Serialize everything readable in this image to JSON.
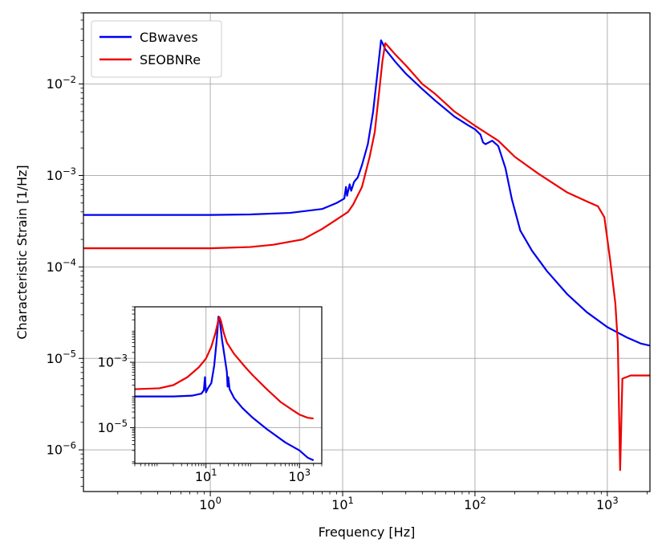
{
  "chart_data": [
    {
      "type": "line",
      "title": "",
      "xlabel": "Frequency [Hz]",
      "ylabel": "Characteristic Strain [1/Hz]",
      "xscale": "log",
      "yscale": "log",
      "xlim": [
        0.11,
        2100
      ],
      "ylim": [
        3.5e-07,
        0.06
      ],
      "grid": true,
      "legend": "top-left",
      "x_ticks": [
        {
          "value": 1,
          "base": "10",
          "exp": "0"
        },
        {
          "value": 10,
          "base": "10",
          "exp": "1"
        },
        {
          "value": 100,
          "base": "10",
          "exp": "2"
        },
        {
          "value": 1000,
          "base": "10",
          "exp": "3"
        }
      ],
      "y_ticks": [
        {
          "value": 1e-06,
          "base": "10",
          "exp": "−6"
        },
        {
          "value": 1e-05,
          "base": "10",
          "exp": "−5"
        },
        {
          "value": 0.0001,
          "base": "10",
          "exp": "−4"
        },
        {
          "value": 0.001,
          "base": "10",
          "exp": "−3"
        },
        {
          "value": 0.01,
          "base": "10",
          "exp": "−2"
        }
      ],
      "series": [
        {
          "name": "CBwaves",
          "color": "#0000ee",
          "points": [
            [
              0.11,
              0.00037
            ],
            [
              0.5,
              0.00037
            ],
            [
              1,
              0.00037
            ],
            [
              2,
              0.000375
            ],
            [
              4,
              0.00039
            ],
            [
              7,
              0.00043
            ],
            [
              9,
              0.0005
            ],
            [
              10.3,
              0.00056
            ],
            [
              10.6,
              0.00075
            ],
            [
              10.8,
              0.0006
            ],
            [
              11.3,
              0.0008
            ],
            [
              11.6,
              0.00068
            ],
            [
              12.2,
              0.00085
            ],
            [
              13,
              0.00095
            ],
            [
              14,
              0.0013
            ],
            [
              15.5,
              0.0022
            ],
            [
              17,
              0.005
            ],
            [
              18.5,
              0.015
            ],
            [
              19.5,
              0.03
            ],
            [
              20,
              0.028
            ],
            [
              21,
              0.024
            ],
            [
              25,
              0.0175
            ],
            [
              30,
              0.013
            ],
            [
              40,
              0.0088
            ],
            [
              50,
              0.0066
            ],
            [
              70,
              0.0044
            ],
            [
              90,
              0.0035
            ],
            [
              100,
              0.0032
            ],
            [
              110,
              0.0028
            ],
            [
              115,
              0.0023
            ],
            [
              120,
              0.0022
            ],
            [
              135,
              0.0024
            ],
            [
              150,
              0.0021
            ],
            [
              170,
              0.0012
            ],
            [
              190,
              0.00055
            ],
            [
              220,
              0.00025
            ],
            [
              270,
              0.00015
            ],
            [
              350,
              9e-05
            ],
            [
              500,
              5e-05
            ],
            [
              700,
              3.2e-05
            ],
            [
              1000,
              2.2e-05
            ],
            [
              1400,
              1.7e-05
            ],
            [
              1800,
              1.45e-05
            ],
            [
              2100,
              1.38e-05
            ]
          ]
        },
        {
          "name": "SEOBNRe",
          "color": "#ee0000",
          "points": [
            [
              0.11,
              0.00016
            ],
            [
              0.5,
              0.00016
            ],
            [
              1,
              0.00016
            ],
            [
              2,
              0.000165
            ],
            [
              3,
              0.000175
            ],
            [
              5,
              0.0002
            ],
            [
              7,
              0.00026
            ],
            [
              9,
              0.00033
            ],
            [
              11,
              0.0004
            ],
            [
              12,
              0.00048
            ],
            [
              14,
              0.00075
            ],
            [
              16,
              0.0016
            ],
            [
              17.5,
              0.003
            ],
            [
              19,
              0.009
            ],
            [
              20,
              0.018
            ],
            [
              21,
              0.028
            ],
            [
              22,
              0.026
            ],
            [
              25,
              0.021
            ],
            [
              30,
              0.016
            ],
            [
              40,
              0.01
            ],
            [
              50,
              0.0078
            ],
            [
              70,
              0.005
            ],
            [
              100,
              0.0035
            ],
            [
              150,
              0.0024
            ],
            [
              200,
              0.0016
            ],
            [
              300,
              0.00105
            ],
            [
              500,
              0.00065
            ],
            [
              700,
              0.00052
            ],
            [
              850,
              0.00046
            ],
            [
              950,
              0.00035
            ],
            [
              1050,
              0.00012
            ],
            [
              1150,
              4e-05
            ],
            [
              1200,
              1.5e-05
            ],
            [
              1250,
              6e-07
            ],
            [
              1300,
              6e-06
            ],
            [
              1500,
              6.5e-06
            ],
            [
              1800,
              6.5e-06
            ],
            [
              2100,
              6.5e-06
            ]
          ]
        }
      ]
    },
    {
      "type": "line",
      "title": "",
      "xlabel": "",
      "ylabel": "",
      "xscale": "log",
      "yscale": "log",
      "xlim": [
        0.3,
        3000
      ],
      "ylim": [
        8e-07,
        0.05
      ],
      "grid": true,
      "legend": "none",
      "x_ticks": [
        {
          "value": 10,
          "base": "10",
          "exp": "1"
        },
        {
          "value": 1000,
          "base": "10",
          "exp": "3"
        }
      ],
      "y_ticks": [
        {
          "value": 1e-05,
          "base": "10",
          "exp": "−5"
        },
        {
          "value": 0.001,
          "base": "10",
          "exp": "−3"
        }
      ],
      "series": [
        {
          "name": "",
          "color": "#0000ee",
          "points": [
            [
              0.3,
              9e-05
            ],
            [
              2,
              9e-05
            ],
            [
              5,
              9.5e-05
            ],
            [
              8,
              0.00011
            ],
            [
              9,
              0.00014
            ],
            [
              9.5,
              0.00035
            ],
            [
              10,
              0.00012
            ],
            [
              11,
              0.00016
            ],
            [
              13,
              0.00023
            ],
            [
              15,
              0.0008
            ],
            [
              17,
              0.005
            ],
            [
              18.5,
              0.025
            ],
            [
              19.5,
              0.023
            ],
            [
              22,
              0.005
            ],
            [
              25,
              0.0015
            ],
            [
              28,
              0.0005
            ],
            [
              29,
              0.00018
            ],
            [
              30,
              0.00035
            ],
            [
              32,
              0.00015
            ],
            [
              40,
              8e-05
            ],
            [
              60,
              4e-05
            ],
            [
              100,
              2e-05
            ],
            [
              200,
              9e-06
            ],
            [
              500,
              3.5e-06
            ],
            [
              1000,
              2e-06
            ],
            [
              1500,
              1.2e-06
            ],
            [
              2000,
              1e-06
            ]
          ]
        },
        {
          "name": "",
          "color": "#ee0000",
          "points": [
            [
              0.3,
              0.00015
            ],
            [
              1,
              0.00016
            ],
            [
              2,
              0.0002
            ],
            [
              4,
              0.00035
            ],
            [
              7,
              0.0007
            ],
            [
              10,
              0.0013
            ],
            [
              13,
              0.003
            ],
            [
              16,
              0.008
            ],
            [
              18,
              0.017
            ],
            [
              19.5,
              0.024
            ],
            [
              21,
              0.018
            ],
            [
              24,
              0.008
            ],
            [
              28,
              0.004
            ],
            [
              40,
              0.0018
            ],
            [
              70,
              0.0007
            ],
            [
              100,
              0.0004
            ],
            [
              200,
              0.00015
            ],
            [
              400,
              6e-05
            ],
            [
              700,
              3.5e-05
            ],
            [
              1000,
              2.5e-05
            ],
            [
              1500,
              2e-05
            ],
            [
              2000,
              1.9e-05
            ]
          ]
        }
      ]
    }
  ]
}
